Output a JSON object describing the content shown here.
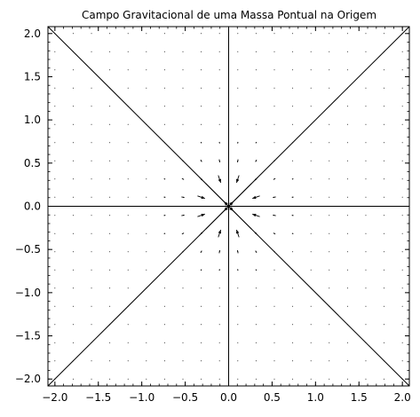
{
  "chart_data": {
    "type": "quiver",
    "title": "Campo Gravitacional de uma Massa Pontual na Origem",
    "xlabel": "",
    "ylabel": "",
    "xlim": [
      -2.08,
      2.08
    ],
    "ylim": [
      -2.08,
      2.08
    ],
    "xticks": [
      -2.0,
      -1.5,
      -1.0,
      -0.5,
      0.0,
      0.5,
      1.0,
      1.5,
      2.0
    ],
    "xtick_labels": [
      "−2.0",
      "−1.5",
      "−1.0",
      "−0.5",
      "0.0",
      "0.5",
      "1.0",
      "1.5",
      "2.0"
    ],
    "yticks": [
      -2.0,
      -1.5,
      -1.0,
      -0.5,
      0.0,
      0.5,
      1.0,
      1.5,
      2.0
    ],
    "ytick_labels": [
      "−2.0",
      "−1.5",
      "−1.0",
      "−0.5",
      "0.0",
      "0.5",
      "1.0",
      "1.5",
      "2.0"
    ],
    "grid": false,
    "field": {
      "formula": "F(x,y) = -(x, y) / (x^2 + y^2)^(3/2)",
      "grid_min": -2.0,
      "grid_max": 2.0,
      "grid_count": 20,
      "direction": "toward origin",
      "arrow_color": "#000000"
    },
    "reference_lines": [
      {
        "name": "x-axis",
        "x": [
          -2.08,
          2.08
        ],
        "y": [
          0,
          0
        ]
      },
      {
        "name": "y-axis",
        "x": [
          0,
          0
        ],
        "y": [
          -2.08,
          2.08
        ]
      },
      {
        "name": "diagonal y=x",
        "x": [
          -2.08,
          2.08
        ],
        "y": [
          -2.08,
          2.08
        ]
      },
      {
        "name": "diagonal y=-x",
        "x": [
          -2.08,
          2.08
        ],
        "y": [
          2.08,
          -2.08
        ]
      }
    ]
  }
}
